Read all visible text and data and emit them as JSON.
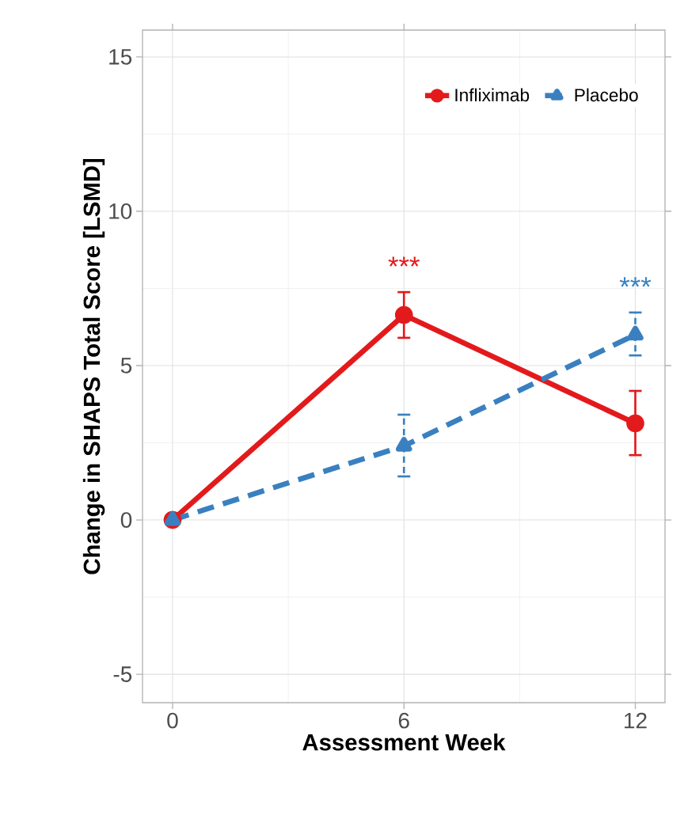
{
  "chart_data": {
    "type": "line",
    "xlabel": "Assessment Week",
    "ylabel": "Change in SHAPS Total Score [LSMD]",
    "x": [
      0,
      6,
      12
    ],
    "series": [
      {
        "name": "Infliximab",
        "color": "#e31a1c",
        "marker": "circle",
        "line_style": "solid",
        "values": [
          0,
          6.64,
          3.13
        ],
        "errors": [
          null,
          [
            5.9,
            7.38
          ],
          [
            2.1,
            4.18
          ]
        ]
      },
      {
        "name": "Placebo",
        "color": "#3a80c0",
        "marker": "triangle",
        "line_style": "dashed",
        "values": [
          0,
          2.4,
          6.0
        ],
        "errors": [
          null,
          [
            1.41,
            3.41
          ],
          [
            5.33,
            6.72
          ]
        ]
      }
    ],
    "annotations": [
      "***",
      "***"
    ],
    "xlim": [
      -0.78,
      12.77
    ],
    "ylim": [
      -5.92,
      15.87
    ],
    "xticks": [
      0,
      6,
      12
    ],
    "yticks": [
      -5,
      0,
      5,
      10,
      15
    ],
    "grid": true,
    "legend": "top right"
  }
}
